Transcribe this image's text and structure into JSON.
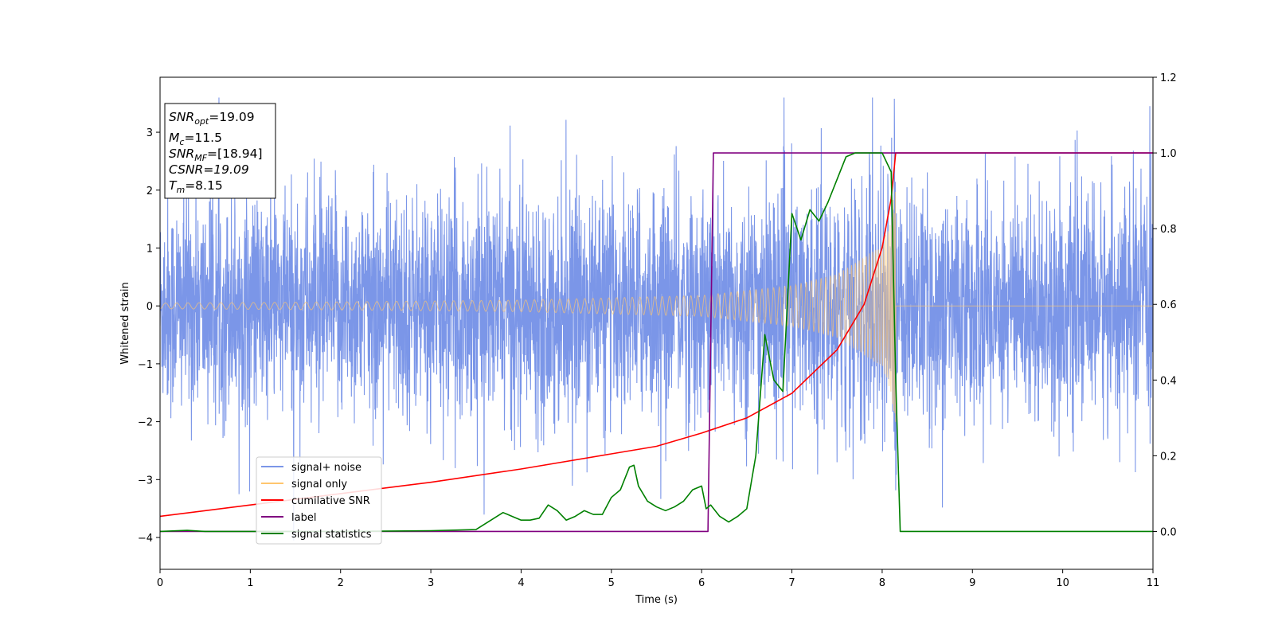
{
  "chart_data": {
    "type": "line",
    "xlabel": "Time (s)",
    "ylabel": "Whitened strain",
    "xlim": [
      0,
      11
    ],
    "ylim_left": [
      -4.55,
      3.95
    ],
    "ylim_right": [
      -0.1,
      1.2
    ],
    "xticks": [
      "0",
      "1",
      "2",
      "3",
      "4",
      "5",
      "6",
      "7",
      "8",
      "9",
      "10",
      "11"
    ],
    "yticks_left": [
      "−4",
      "−3",
      "−2",
      "−1",
      "0",
      "1",
      "2",
      "3"
    ],
    "yticks_right": [
      "0.0",
      "0.2",
      "0.4",
      "0.6",
      "0.8",
      "1.0",
      "1.2"
    ],
    "legend_position": "lower-left",
    "info_box": {
      "snr_opt": "=19.09",
      "mc": "=11.5",
      "snr_mf": "=[18.94]",
      "csnr": "CSNR=19.09",
      "tm": "=8.15"
    },
    "series": [
      {
        "name": "signal+ noise",
        "axis": "left",
        "color": "#7b96e8",
        "description_values": {
          "noise_std": 0.95,
          "t_range": [
            0,
            11
          ]
        }
      },
      {
        "name": "signal only",
        "axis": "left",
        "color": "#ffc66e",
        "envelope": {
          "t": [
            0,
            2,
            4,
            6,
            7,
            7.5,
            8,
            8.1,
            8.15
          ],
          "amplitude": [
            0.05,
            0.07,
            0.1,
            0.18,
            0.35,
            0.55,
            1.05,
            1.5,
            2.3
          ]
        },
        "merger_time": 8.15
      },
      {
        "name": "cumilative SNR",
        "axis": "right",
        "color": "#ff0000",
        "x": [
          0,
          1,
          2,
          3,
          4,
          5,
          5.5,
          6,
          6.5,
          7,
          7.5,
          7.8,
          8.0,
          8.1,
          8.15,
          8.2,
          11
        ],
        "y": [
          0.04,
          0.07,
          0.1,
          0.13,
          0.165,
          0.205,
          0.225,
          0.26,
          0.3,
          0.365,
          0.48,
          0.6,
          0.75,
          0.88,
          1.0,
          1.0,
          1.0
        ]
      },
      {
        "name": "label",
        "axis": "right",
        "color": "#800080",
        "x": [
          0,
          6.07,
          6.13,
          8.15,
          11
        ],
        "y": [
          0,
          0,
          1,
          1,
          1
        ]
      },
      {
        "name": "signal statistics",
        "axis": "right",
        "color": "#008000",
        "x": [
          0,
          0.3,
          0.5,
          1,
          2,
          3,
          3.5,
          3.6,
          3.7,
          3.8,
          3.9,
          4.0,
          4.1,
          4.2,
          4.3,
          4.4,
          4.5,
          4.6,
          4.7,
          4.8,
          4.9,
          5.0,
          5.1,
          5.2,
          5.25,
          5.3,
          5.4,
          5.5,
          5.6,
          5.7,
          5.8,
          5.9,
          6.0,
          6.05,
          6.1,
          6.2,
          6.3,
          6.4,
          6.5,
          6.6,
          6.7,
          6.8,
          6.9,
          7.0,
          7.1,
          7.2,
          7.3,
          7.4,
          7.5,
          7.6,
          7.7,
          7.8,
          7.9,
          8.0,
          8.1,
          8.15,
          8.2,
          11
        ],
        "y": [
          0.0,
          0.003,
          0.0,
          0.0,
          0.0,
          0.002,
          0.005,
          0.02,
          0.035,
          0.05,
          0.04,
          0.03,
          0.03,
          0.035,
          0.07,
          0.055,
          0.03,
          0.04,
          0.055,
          0.045,
          0.045,
          0.09,
          0.11,
          0.17,
          0.175,
          0.12,
          0.08,
          0.065,
          0.055,
          0.065,
          0.08,
          0.11,
          0.12,
          0.06,
          0.07,
          0.04,
          0.025,
          0.04,
          0.06,
          0.2,
          0.52,
          0.4,
          0.37,
          0.84,
          0.77,
          0.85,
          0.82,
          0.87,
          0.93,
          0.99,
          1.0,
          1.0,
          1.0,
          1.0,
          0.95,
          0.4,
          0.0,
          0.0
        ]
      }
    ]
  }
}
